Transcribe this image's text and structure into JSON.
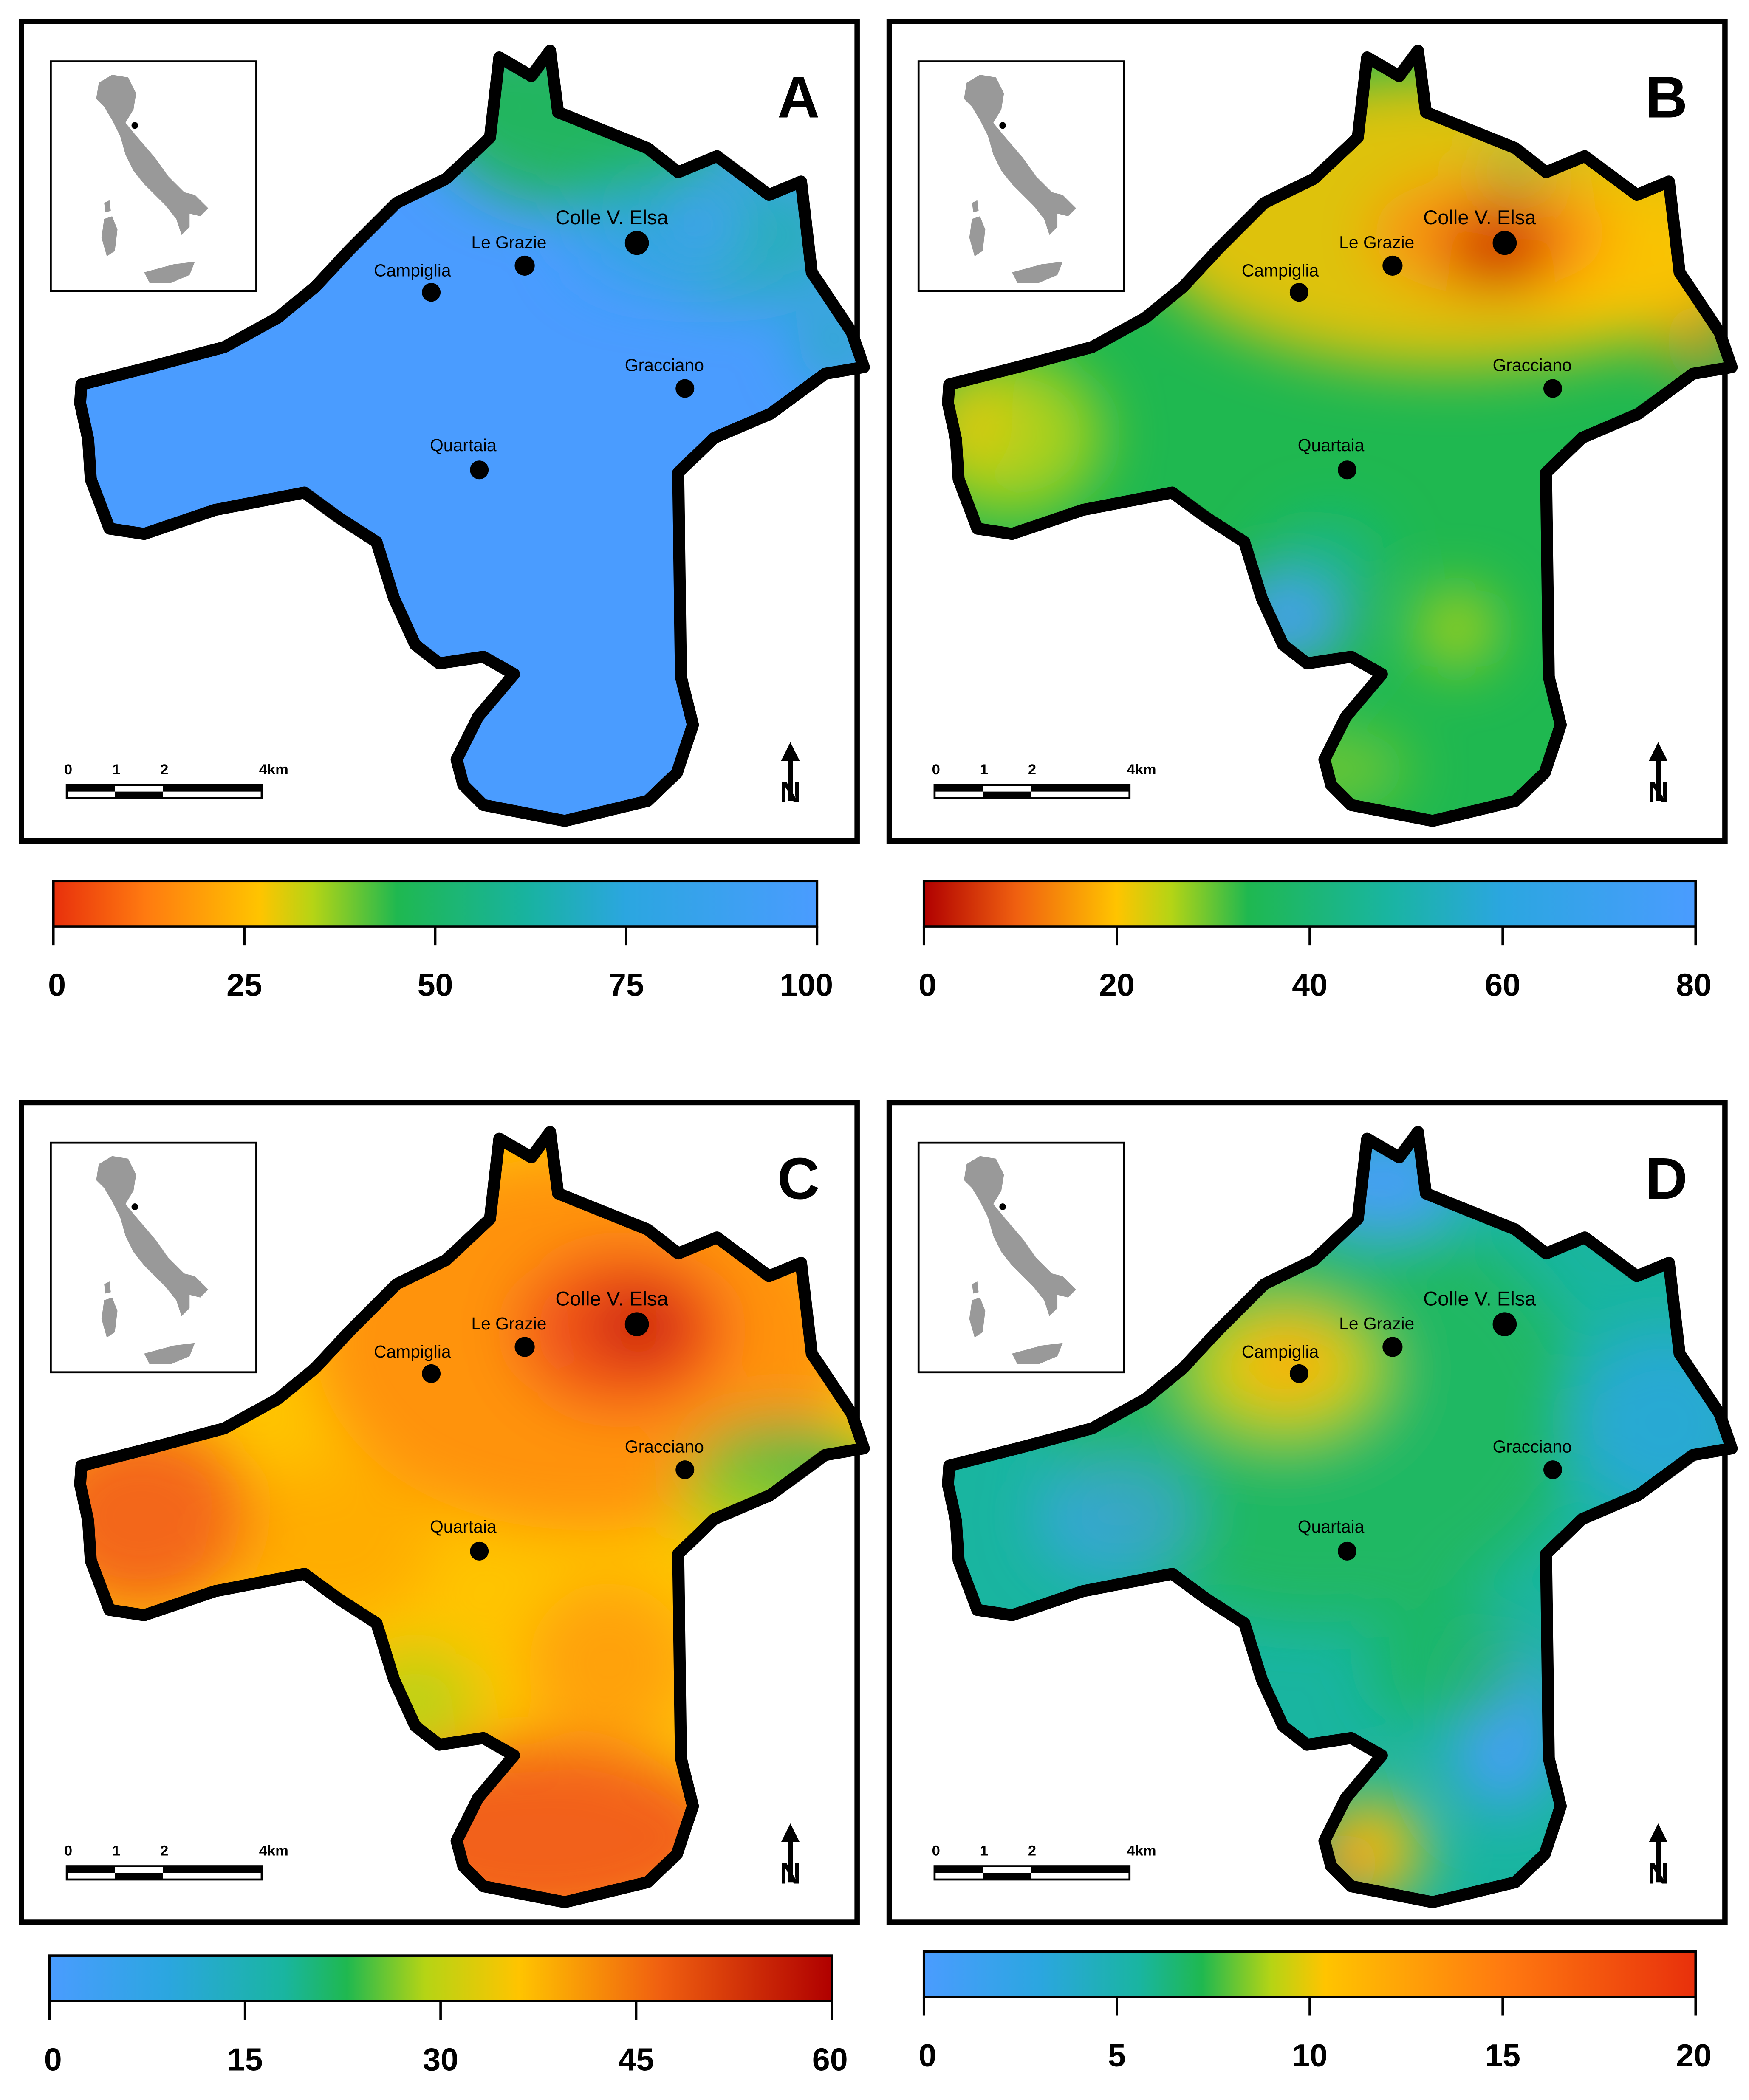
{
  "panels": [
    {
      "id": "A",
      "letter": "A",
      "towns": [
        "Colle V. Elsa",
        "Le Grazie",
        "Campiglia",
        "Gracciano",
        "Quartaia"
      ],
      "scale_bar": {
        "labels": [
          "0",
          "1",
          "2",
          "4km"
        ]
      },
      "north_label": "N",
      "colorbar": {
        "ticks": [
          "0",
          "25",
          "50",
          "75",
          "100"
        ],
        "stops": [
          {
            "offset": 0.0,
            "color": "#e8300c"
          },
          {
            "offset": 0.12,
            "color": "#ff7a10"
          },
          {
            "offset": 0.27,
            "color": "#ffc400"
          },
          {
            "offset": 0.34,
            "color": "#b5d415"
          },
          {
            "offset": 0.45,
            "color": "#1fb850"
          },
          {
            "offset": 0.62,
            "color": "#18b3a0"
          },
          {
            "offset": 0.75,
            "color": "#2ba6e0"
          },
          {
            "offset": 1.0,
            "color": "#4a9cff"
          }
        ]
      }
    },
    {
      "id": "B",
      "letter": "B",
      "towns": [
        "Colle V. Elsa",
        "Le Grazie",
        "Campiglia",
        "Gracciano",
        "Quartaia"
      ],
      "scale_bar": {
        "labels": [
          "0",
          "1",
          "2",
          "4km"
        ]
      },
      "north_label": "N",
      "colorbar": {
        "ticks": [
          "0",
          "20",
          "40",
          "60",
          "80"
        ],
        "stops": [
          {
            "offset": 0.0,
            "color": "#b00000"
          },
          {
            "offset": 0.12,
            "color": "#f06010"
          },
          {
            "offset": 0.25,
            "color": "#ffc400"
          },
          {
            "offset": 0.32,
            "color": "#b5d415"
          },
          {
            "offset": 0.42,
            "color": "#1fb850"
          },
          {
            "offset": 0.6,
            "color": "#19b5a0"
          },
          {
            "offset": 0.75,
            "color": "#2ba6e0"
          },
          {
            "offset": 1.0,
            "color": "#4a9cff"
          }
        ]
      }
    },
    {
      "id": "C",
      "letter": "C",
      "towns": [
        "Colle V. Elsa",
        "Le Grazie",
        "Campiglia",
        "Gracciano",
        "Quartaia"
      ],
      "scale_bar": {
        "labels": [
          "0",
          "1",
          "2",
          "4km"
        ]
      },
      "north_label": "N",
      "colorbar": {
        "ticks": [
          "0",
          "15",
          "30",
          "45",
          "60"
        ],
        "stops": [
          {
            "offset": 0.0,
            "color": "#4a9cff"
          },
          {
            "offset": 0.15,
            "color": "#2ba6e0"
          },
          {
            "offset": 0.3,
            "color": "#19b5a0"
          },
          {
            "offset": 0.38,
            "color": "#1fb850"
          },
          {
            "offset": 0.48,
            "color": "#b5d415"
          },
          {
            "offset": 0.6,
            "color": "#ffc400"
          },
          {
            "offset": 0.78,
            "color": "#f06010"
          },
          {
            "offset": 1.0,
            "color": "#b00000"
          }
        ]
      }
    },
    {
      "id": "D",
      "letter": "D",
      "towns": [
        "Colle V. Elsa",
        "Le Grazie",
        "Campiglia",
        "Gracciano",
        "Quartaia"
      ],
      "scale_bar": {
        "labels": [
          "0",
          "1",
          "2",
          "4km"
        ]
      },
      "north_label": "N",
      "colorbar": {
        "ticks": [
          "0",
          "5",
          "10",
          "15",
          "20"
        ],
        "stops": [
          {
            "offset": 0.0,
            "color": "#4a9cff"
          },
          {
            "offset": 0.15,
            "color": "#2ba6e0"
          },
          {
            "offset": 0.28,
            "color": "#19b5a0"
          },
          {
            "offset": 0.36,
            "color": "#1fb850"
          },
          {
            "offset": 0.45,
            "color": "#b5d415"
          },
          {
            "offset": 0.52,
            "color": "#ffc400"
          },
          {
            "offset": 0.75,
            "color": "#ff7a10"
          },
          {
            "offset": 1.0,
            "color": "#e8300c"
          }
        ]
      }
    }
  ],
  "colors": {
    "blue": "#4a9cff",
    "cyan": "#2ba6e0",
    "teal": "#19b5a0",
    "green": "#1fb850",
    "yellow_green": "#b5d415",
    "yellow": "#ffc400",
    "orange": "#ff8a10",
    "red_orange": "#f05020",
    "dark_red": "#c00000",
    "border": "#000000",
    "italy_gray": "#999999"
  },
  "icons": {
    "north_arrow": "north-arrow-icon",
    "italy_inset": "italy-silhouette-icon",
    "town_marker": "town-dot-icon"
  }
}
